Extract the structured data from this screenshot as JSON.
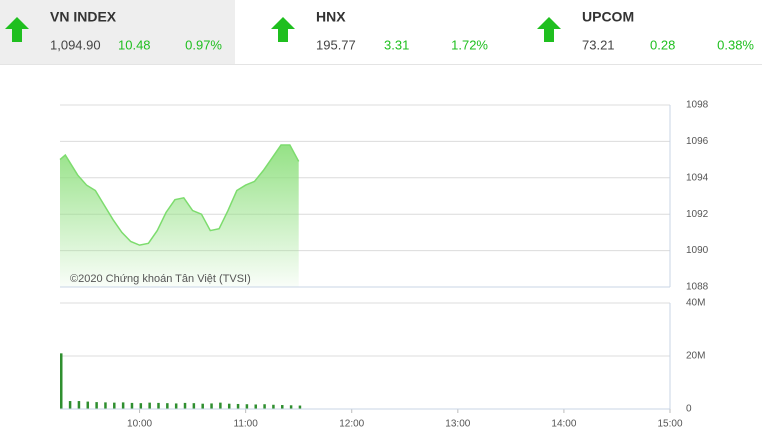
{
  "indices": [
    {
      "name": "VN INDEX",
      "value": "1,094.90",
      "change": "10.48",
      "percent": "0.97%"
    },
    {
      "name": "HNX",
      "value": "195.77",
      "change": "3.31",
      "percent": "1.72%"
    },
    {
      "name": "UPCOM",
      "value": "73.21",
      "change": "0.28",
      "percent": "0.38%"
    }
  ],
  "chart_data": [
    {
      "type": "area",
      "annotation": "©2020 Chứng khoán Tân Việt (TVSI)",
      "color": "#7ddc6e",
      "x": [
        555,
        558,
        565,
        570,
        575,
        580,
        585,
        590,
        595,
        600,
        605,
        610,
        615,
        620,
        625,
        630,
        635,
        640,
        645,
        650,
        655,
        660,
        665,
        670,
        675,
        680,
        685,
        690
      ],
      "values": [
        1095.0,
        1095.25,
        1094.15,
        1093.6,
        1093.3,
        1092.5,
        1091.7,
        1091.0,
        1090.5,
        1090.3,
        1090.4,
        1091.1,
        1092.1,
        1092.8,
        1092.9,
        1092.2,
        1092.0,
        1091.1,
        1091.2,
        1092.2,
        1093.3,
        1093.6,
        1093.8,
        1094.4,
        1095.1,
        1095.8,
        1095.8,
        1094.9
      ],
      "xlim": [
        555,
        900
      ],
      "ylim": [
        1088,
        1098
      ],
      "yticks": [
        1088,
        1090,
        1092,
        1094,
        1096,
        1098
      ],
      "grid": true
    },
    {
      "type": "bar",
      "color": "#2f8f2f",
      "x": [
        555,
        560,
        565,
        570,
        575,
        580,
        585,
        590,
        595,
        600,
        605,
        610,
        615,
        620,
        625,
        630,
        635,
        640,
        645,
        650,
        655,
        660,
        665,
        670,
        675,
        680,
        685,
        690
      ],
      "values": [
        21,
        3,
        3,
        2.8,
        2.6,
        2.5,
        2.4,
        2.5,
        2.3,
        2.2,
        2.4,
        2.3,
        2.2,
        2.1,
        2.3,
        2.2,
        2.0,
        2.1,
        2.4,
        2.0,
        1.9,
        1.8,
        1.7,
        1.8,
        1.6,
        1.5,
        1.4,
        1.3
      ],
      "xlim": [
        555,
        900
      ],
      "ylim": [
        0,
        40
      ],
      "yticks": [
        0,
        {
          "value": 20,
          "label": "20M"
        },
        {
          "value": 40,
          "label": "40M"
        }
      ],
      "xticks": [
        {
          "value": 600,
          "label": "10:00"
        },
        {
          "value": 660,
          "label": "11:00"
        },
        {
          "value": 720,
          "label": "12:00"
        },
        {
          "value": 780,
          "label": "13:00"
        },
        {
          "value": 840,
          "label": "14:00"
        },
        {
          "value": 900,
          "label": "15:00"
        }
      ],
      "grid": true
    }
  ]
}
